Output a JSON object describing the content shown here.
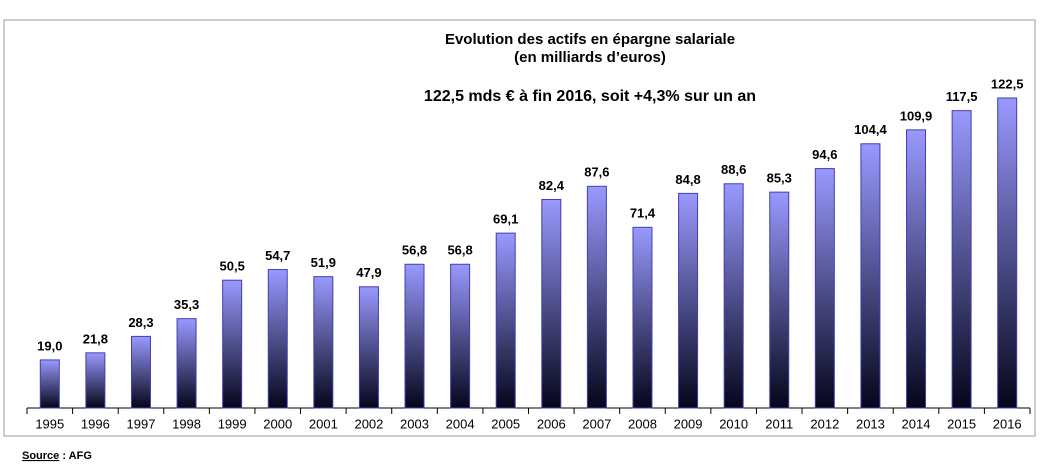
{
  "chart_data": {
    "type": "bar",
    "title": [
      "Evolution des actifs en épargne salariale",
      "(en milliards d’euros)"
    ],
    "subtitle": "122,5  mds € à fin 2016, soit +4,3% sur un an",
    "categories": [
      "1995",
      "1996",
      "1997",
      "1998",
      "1999",
      "2000",
      "2001",
      "2002",
      "2003",
      "2004",
      "2005",
      "2006",
      "2007",
      "2008",
      "2009",
      "2010",
      "2011",
      "2012",
      "2013",
      "2014",
      "2015",
      "2016"
    ],
    "values": [
      19.0,
      21.8,
      28.3,
      35.3,
      50.5,
      54.7,
      51.9,
      47.9,
      56.8,
      56.8,
      69.1,
      82.4,
      87.6,
      71.4,
      84.8,
      88.6,
      85.3,
      94.6,
      104.4,
      109.9,
      117.5,
      122.5
    ],
    "value_labels": [
      "19,0",
      "21,8",
      "28,3",
      "35,3",
      "50,5",
      "54,7",
      "51,9",
      "47,9",
      "56,8",
      "56,8",
      "69,1",
      "82,4",
      "87,6",
      "71,4",
      "84,8",
      "88,6",
      "85,3",
      "94,6",
      "104,4",
      "109,9",
      "117,5",
      "122,5"
    ],
    "color": [
      "#9999ff",
      "#05051a"
    ],
    "ylim": [
      0,
      130
    ],
    "source": {
      "label": "Source",
      "text": " : AFG"
    }
  }
}
